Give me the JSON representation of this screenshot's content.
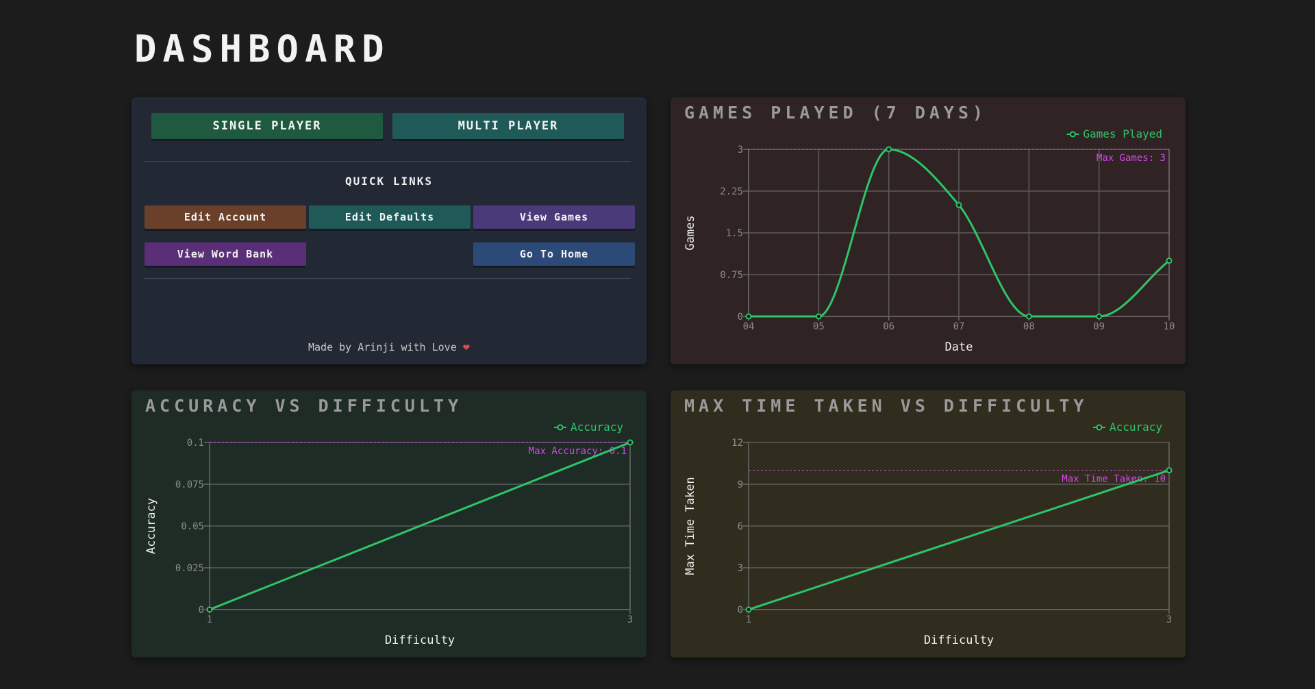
{
  "page": {
    "title": "DASHBOARD"
  },
  "nav_panel": {
    "single_player": "SINGLE PLAYER",
    "multi_player": "MULTI PLAYER",
    "quick_links_title": "QUICK LINKS",
    "links": {
      "edit_account": "Edit Account",
      "edit_defaults": "Edit Defaults",
      "view_games": "View Games",
      "view_word_bank": "View Word Bank",
      "go_to_home": "Go To Home"
    },
    "footer_text": "Made by Arinji with Love",
    "footer_icon": "heart-icon"
  },
  "colors": {
    "single_player": "#1f5a40",
    "multi_player": "#1f5a59",
    "edit_account": "#6a402a",
    "edit_defaults": "#1f5a59",
    "view_games": "#4a3a7a",
    "view_word_bank": "#5a2f78",
    "go_to_home": "#2b4a78",
    "series_line": "#2ec46a",
    "annotation": "#d946ef"
  },
  "chart_data": [
    {
      "id": "games",
      "type": "line",
      "title": "GAMES PLAYED (7 DAYS)",
      "xlabel": "Date",
      "ylabel": "Games",
      "x": [
        "04",
        "05",
        "06",
        "07",
        "08",
        "09",
        "10"
      ],
      "series": [
        {
          "name": "Games Played",
          "values": [
            0,
            0,
            3,
            2,
            0,
            0,
            1
          ]
        }
      ],
      "ylim": [
        0,
        3
      ],
      "yticks": [
        "0",
        "0.75",
        "1.5",
        "2.25",
        "3"
      ],
      "curve": "smooth",
      "grid": true,
      "legend": "top-right",
      "reference_line": {
        "value": 3,
        "label": "Max Games: 3"
      }
    },
    {
      "id": "accuracy",
      "type": "line",
      "title": "ACCURACY VS DIFFICULTY",
      "xlabel": "Difficulty",
      "ylabel": "Accuracy",
      "x": [
        1,
        3
      ],
      "xticks": [
        "1",
        "3"
      ],
      "series": [
        {
          "name": "Accuracy",
          "values": [
            0,
            0.1
          ]
        }
      ],
      "ylim": [
        0,
        0.1
      ],
      "yticks": [
        "0",
        "0.025",
        "0.05",
        "0.075",
        "0.1"
      ],
      "curve": "linear",
      "grid": "horizontal",
      "legend": "top-right",
      "reference_line": {
        "value": 0.1,
        "label": "Max Accuracy: 0.1"
      }
    },
    {
      "id": "time",
      "type": "line",
      "title": "MAX TIME TAKEN VS DIFFICULTY",
      "xlabel": "Difficulty",
      "ylabel": "Max Time Taken",
      "x": [
        1,
        3
      ],
      "xticks": [
        "1",
        "3"
      ],
      "series": [
        {
          "name": "Accuracy",
          "values": [
            0,
            10
          ]
        }
      ],
      "ylim": [
        0,
        12
      ],
      "yticks": [
        "0",
        "3",
        "6",
        "9",
        "12"
      ],
      "curve": "linear",
      "grid": "horizontal",
      "legend": "top-right",
      "reference_line": {
        "value": 10,
        "label": "Max Time Taken: 10"
      }
    }
  ]
}
